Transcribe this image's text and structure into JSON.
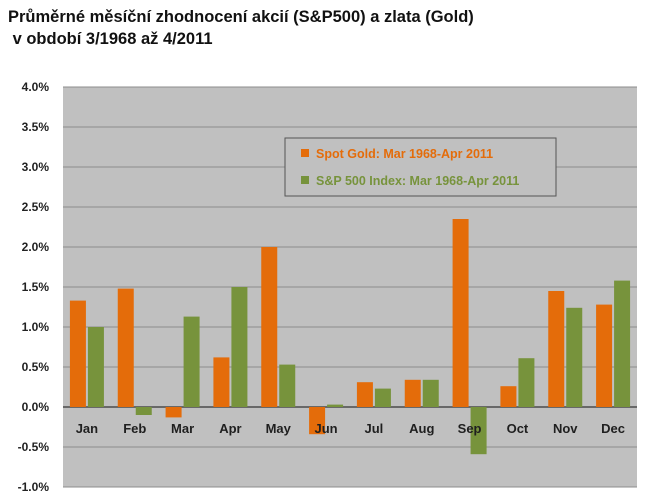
{
  "page": {
    "title_line1": "Průměrné měsíční zhodnocení akcií (S&P500) a zlata (Gold)",
    "title_line2": " v období 3/1968 až 4/2011"
  },
  "chart_data": {
    "type": "bar",
    "categories": [
      "Jan",
      "Feb",
      "Mar",
      "Apr",
      "May",
      "Jun",
      "Jul",
      "Aug",
      "Sep",
      "Oct",
      "Nov",
      "Dec"
    ],
    "series": [
      {
        "name": "Spot Gold: Mar 1968-Apr 2011",
        "color": "#E46C0A",
        "values": [
          1.33,
          1.48,
          -0.13,
          0.62,
          2.0,
          -0.34,
          0.31,
          0.34,
          2.35,
          0.26,
          1.45,
          1.28
        ]
      },
      {
        "name": "S&P 500 Index: Mar 1968-Apr 2011",
        "color": "#77933C",
        "values": [
          1.0,
          -0.1,
          1.13,
          1.5,
          0.53,
          0.03,
          0.23,
          0.34,
          -0.59,
          0.61,
          1.24,
          1.58
        ]
      }
    ],
    "y_ticks": [
      "4.0%",
      "3.5%",
      "3.0%",
      "2.5%",
      "2.0%",
      "1.5%",
      "1.0%",
      "0.5%",
      "0.0%",
      "-0.5%",
      "-1.0%"
    ],
    "ylim": [
      -1.0,
      4.0
    ],
    "plot_background": "#C0C0C0",
    "grid": true,
    "legend_position": "upper-right"
  }
}
